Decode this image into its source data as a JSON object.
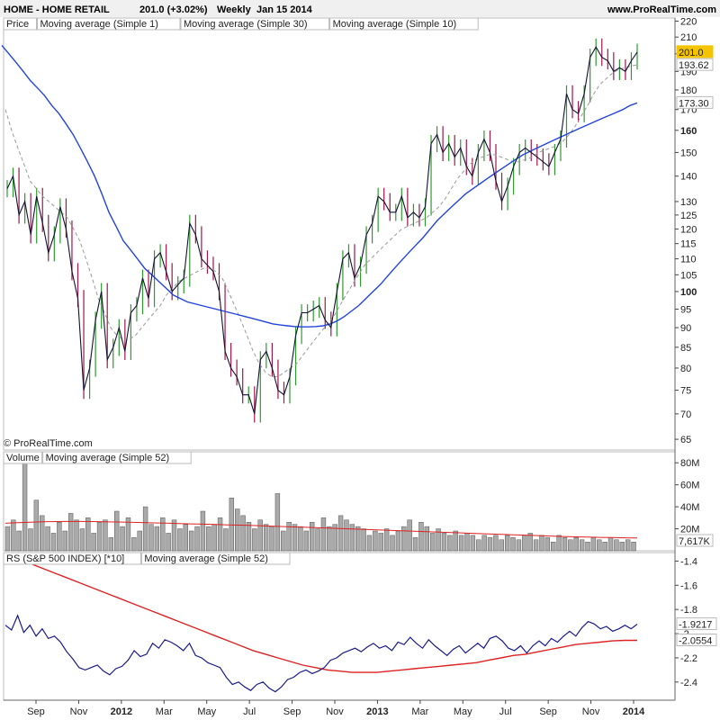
{
  "header": {
    "title": "HOME - HOME RETAIL",
    "quote": "201.0 (+3.02%)",
    "period": "Weekly",
    "date": "Jan 15 2014",
    "site": "www.ProRealTime.com",
    "copyright": "© ProRealTime.com"
  },
  "colors": {
    "up": "#2e9a2e",
    "down": "#a0174a",
    "close_line": "#111133",
    "ma30": "#2244dd",
    "ma10": "#999999",
    "ma52": "#dd2222",
    "rs": "#1a1a8a",
    "volume_bar": "#aaaaaa",
    "price_tag": "#f5c400"
  },
  "chart_data": [
    {
      "id": "price",
      "type": "line",
      "legend": [
        "Price",
        "Moving average (Simple 1)",
        "Moving average (Simple 30)",
        "Moving average (Simple 10)"
      ],
      "y_scale": "log",
      "ylim": [
        63,
        222
      ],
      "yticks": [
        "220",
        "210",
        "200",
        "190",
        "180",
        "170",
        "160",
        "150",
        "140",
        "130",
        "125",
        "120",
        "115",
        "110",
        "105",
        "100",
        "95",
        "90",
        "85",
        "80",
        "75",
        "70",
        "65"
      ],
      "bold_ticks": [
        "160",
        "100"
      ],
      "x_ticks": [
        "Sep",
        "Nov",
        "2012",
        "Mar",
        "May",
        "Jul",
        "Sep",
        "Nov",
        "2013",
        "Mar",
        "May",
        "Jul",
        "Sep",
        "Nov",
        "2014"
      ],
      "bold_x_ticks": [
        "2012",
        "2013",
        "2014"
      ],
      "series": [
        {
          "name": "Moving average (Simple 1)",
          "values": [
            135,
            140,
            125,
            130,
            118,
            132,
            122,
            112,
            118,
            128,
            120,
            106,
            98,
            75,
            80,
            92,
            100,
            82,
            85,
            90,
            84,
            94,
            96,
            104,
            98,
            110,
            112,
            106,
            100,
            102,
            104,
            122,
            118,
            110,
            108,
            106,
            100,
            84,
            80,
            78,
            74,
            74,
            70,
            82,
            84,
            80,
            75,
            74,
            78,
            88,
            94,
            94,
            95,
            96,
            92,
            90,
            100,
            110,
            112,
            104,
            108,
            118,
            122,
            132,
            130,
            126,
            126,
            132,
            124,
            126,
            124,
            128,
            154,
            158,
            150,
            154,
            148,
            152,
            144,
            140,
            150,
            156,
            150,
            138,
            130,
            136,
            144,
            150,
            152,
            150,
            148,
            146,
            144,
            150,
            156,
            178,
            170,
            168,
            178,
            198,
            204,
            198,
            196,
            190,
            192,
            190,
            196,
            201
          ]
        },
        {
          "name": "Moving average (Simple 30)",
          "values": [
            205,
            200,
            195,
            190,
            185,
            181,
            177,
            172,
            168,
            163,
            158,
            152,
            146,
            140,
            133,
            126,
            121,
            116,
            113,
            110,
            107,
            105,
            103,
            101,
            99,
            98,
            97,
            96.5,
            96,
            95.5,
            95,
            94.5,
            94,
            93.5,
            93,
            92.5,
            92,
            91.5,
            91,
            90.7,
            90.5,
            90.3,
            90.2,
            90.2,
            90.3,
            90.5,
            91,
            91.8,
            93,
            94.5,
            96,
            98,
            100,
            102,
            104.5,
            107,
            109.5,
            112,
            114.5,
            117,
            120,
            123,
            125.5,
            128,
            130.5,
            133,
            135,
            137,
            139,
            141,
            143,
            145,
            147,
            149,
            150.5,
            152,
            153.5,
            155,
            156.5,
            158,
            159.5,
            161,
            162.5,
            164,
            165.5,
            167,
            168.5,
            170,
            172,
            173.3
          ]
        },
        {
          "name": "Moving average (Simple 10)",
          "values": [
            170,
            160,
            152,
            145,
            138,
            135,
            132,
            130,
            128,
            126,
            124,
            120,
            116,
            110,
            104,
            98,
            94,
            90,
            88,
            87,
            87,
            88,
            90,
            92,
            94,
            96,
            99,
            101,
            103,
            104,
            105,
            106,
            107,
            107,
            106,
            104,
            100,
            96,
            92,
            88,
            84,
            81,
            79,
            78,
            78,
            79,
            80,
            81,
            83,
            85,
            87,
            89,
            91,
            93,
            96,
            99,
            102,
            105,
            108,
            110,
            112,
            114,
            116,
            118,
            120,
            121,
            122,
            123,
            124,
            126,
            128,
            131,
            135,
            139,
            142,
            145,
            147,
            148,
            149,
            149,
            148,
            147,
            146,
            146,
            147,
            148,
            150,
            151,
            152,
            153,
            155,
            158,
            162,
            167,
            172,
            178,
            183,
            186,
            189,
            191,
            192,
            193,
            193.62
          ]
        }
      ],
      "last_labels": [
        {
          "name": "close",
          "value": "201.0"
        },
        {
          "name": "ma10",
          "value": "193.62"
        },
        {
          "name": "ma30",
          "value": "173.30"
        }
      ]
    },
    {
      "id": "volume",
      "type": "bar",
      "legend": [
        "Volume",
        "Moving average (Simple 52)"
      ],
      "ylim": [
        0,
        90
      ],
      "yticks": [
        "80M",
        "60M",
        "40M",
        "20M"
      ],
      "series": [
        {
          "name": "Volume",
          "values": [
            22,
            28,
            18,
            90,
            20,
            46,
            32,
            22,
            16,
            26,
            18,
            34,
            28,
            20,
            30,
            16,
            26,
            28,
            12,
            36,
            22,
            30,
            12,
            18,
            40,
            24,
            22,
            30,
            16,
            28,
            20,
            24,
            18,
            22,
            36,
            22,
            24,
            30,
            20,
            48,
            38,
            32,
            26,
            20,
            28,
            24,
            22,
            52,
            18,
            26,
            24,
            22,
            18,
            26,
            20,
            30,
            22,
            24,
            32,
            28,
            24,
            22,
            20,
            14,
            18,
            16,
            20,
            14,
            18,
            22,
            28,
            12,
            26,
            22,
            16,
            20,
            16,
            14,
            18,
            14,
            16,
            14,
            10,
            14,
            12,
            14,
            10,
            14,
            12,
            10,
            14,
            16,
            10,
            14,
            12,
            8,
            14,
            12,
            10,
            12,
            10,
            8,
            12,
            10,
            8,
            12,
            10,
            8,
            10,
            8
          ]
        },
        {
          "name": "Moving average (Simple 52)",
          "values": [
            25,
            25.5,
            26,
            26.4,
            26.6,
            26.7,
            26.7,
            26.6,
            26.4,
            26.2,
            26,
            25.7,
            25.4,
            25.1,
            24.8,
            24.5,
            24.2,
            23.9,
            23.6,
            23.3,
            23,
            22.6,
            22.2,
            21.8,
            21.4,
            21,
            20.6,
            20.2,
            19.8,
            19.4,
            19,
            18.6,
            18.2,
            17.8,
            17.4,
            17,
            16.6,
            16.2,
            15.8,
            15.4,
            15,
            14.6,
            14.2,
            13.8,
            13.4,
            13,
            12.7,
            12.4,
            12.2,
            12,
            11.8,
            11.7
          ]
        }
      ],
      "last_label": "7,617K"
    },
    {
      "id": "rs",
      "type": "line",
      "legend": [
        "RS (S&P 500 INDEX) [*10]",
        "Moving average (Simple 52)"
      ],
      "ylim": [
        -2.55,
        -1.33
      ],
      "yticks": [
        "-1.4",
        "-1.6",
        "-1.8",
        "-2",
        "-2.2",
        "-2.4"
      ],
      "series": [
        {
          "name": "RS (S&P 500 INDEX) [*10]",
          "values": [
            -1.93,
            -1.97,
            -1.85,
            -1.99,
            -1.93,
            -2.02,
            -1.96,
            -2.04,
            -2.02,
            -2.07,
            -2.15,
            -2.21,
            -2.28,
            -2.3,
            -2.28,
            -2.26,
            -2.31,
            -2.34,
            -2.29,
            -2.27,
            -2.22,
            -2.14,
            -2.19,
            -2.17,
            -2.08,
            -2.12,
            -2.05,
            -2.07,
            -2.1,
            -2.14,
            -2.08,
            -2.18,
            -2.2,
            -2.24,
            -2.26,
            -2.28,
            -2.36,
            -2.42,
            -2.4,
            -2.44,
            -2.47,
            -2.42,
            -2.4,
            -2.45,
            -2.48,
            -2.44,
            -2.38,
            -2.36,
            -2.32,
            -2.3,
            -2.33,
            -2.31,
            -2.28,
            -2.22,
            -2.2,
            -2.16,
            -2.14,
            -2.12,
            -2.15,
            -2.11,
            -2.08,
            -2.12,
            -2.1,
            -2.14,
            -2.07,
            -2.09,
            -2.03,
            -2.08,
            -2.12,
            -2.05,
            -2.1,
            -2.14,
            -2.18,
            -2.13,
            -2.1,
            -2.16,
            -2.12,
            -2.08,
            -2.12,
            -2.04,
            -2.02,
            -2.06,
            -2.12,
            -2.14,
            -2.1,
            -2.16,
            -2.1,
            -2.06,
            -2.1,
            -2.04,
            -2.07,
            -2.02,
            -1.98,
            -2.02,
            -1.95,
            -1.9,
            -1.92,
            -1.96,
            -1.94,
            -1.98,
            -1.96,
            -1.93,
            -1.96,
            -1.9217
          ]
        },
        {
          "name": "Moving average (Simple 52)",
          "values": [
            -1.36,
            -1.39,
            -1.42,
            -1.46,
            -1.5,
            -1.54,
            -1.58,
            -1.62,
            -1.66,
            -1.7,
            -1.74,
            -1.78,
            -1.82,
            -1.86,
            -1.9,
            -1.94,
            -1.98,
            -2.02,
            -2.06,
            -2.1,
            -2.14,
            -2.17,
            -2.2,
            -2.23,
            -2.26,
            -2.28,
            -2.3,
            -2.31,
            -2.32,
            -2.32,
            -2.32,
            -2.31,
            -2.3,
            -2.29,
            -2.28,
            -2.27,
            -2.26,
            -2.25,
            -2.24,
            -2.22,
            -2.2,
            -2.18,
            -2.17,
            -2.15,
            -2.13,
            -2.11,
            -2.09,
            -2.08,
            -2.07,
            -2.06,
            -2.055,
            -2.0554
          ]
        }
      ],
      "last_labels": [
        {
          "name": "rs",
          "value": "-1.9217"
        },
        {
          "name": "ma52",
          "value": "-2.0554"
        }
      ]
    }
  ]
}
